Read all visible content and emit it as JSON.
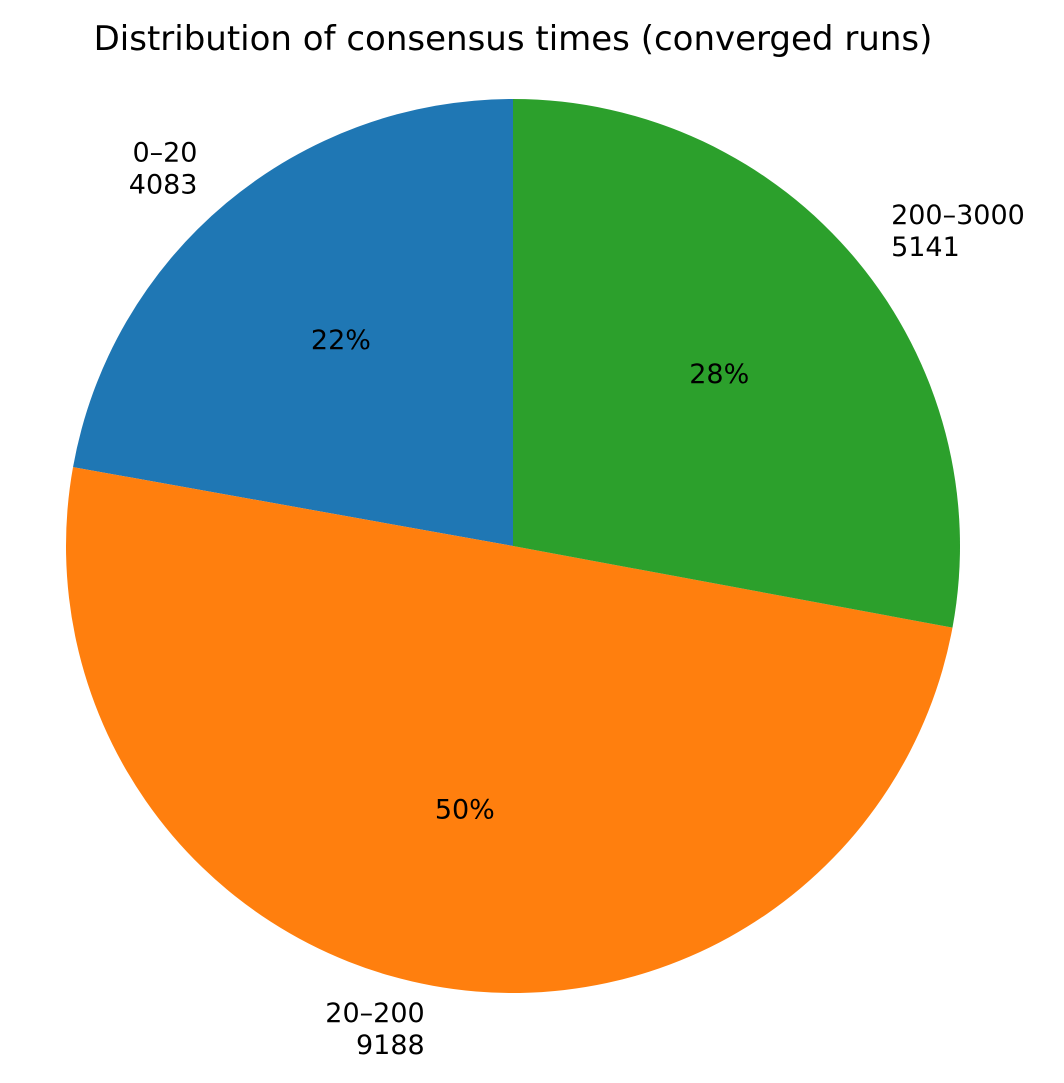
{
  "chart_data": {
    "type": "pie",
    "title": "Distribution of consensus times (converged runs)",
    "start_angle_deg": 90,
    "direction": "counterclockwise",
    "slices": [
      {
        "label": "0–20",
        "value": 4083,
        "pct_label": "22%",
        "color": "#1f77b4"
      },
      {
        "label": "20–200",
        "value": 9188,
        "pct_label": "50%",
        "color": "#ff7f0e"
      },
      {
        "label": "200–3000",
        "value": 5141,
        "pct_label": "28%",
        "color": "#2ca02c"
      }
    ]
  }
}
